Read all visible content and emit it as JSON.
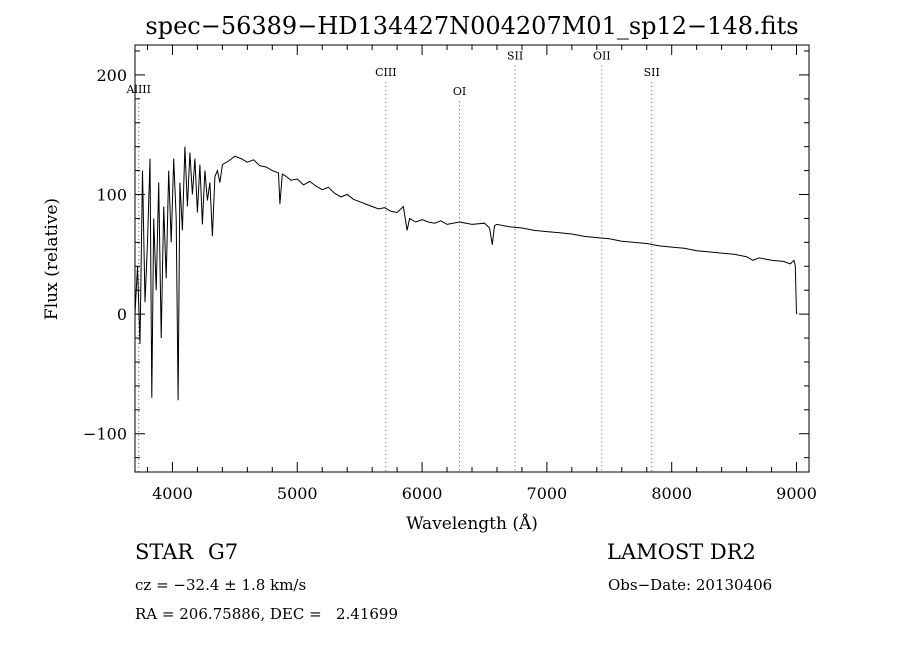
{
  "chart_data": {
    "type": "line",
    "title": "spec−56389−HD134427N004207M01_sp12−148.fits",
    "xlabel": "Wavelength (Å)",
    "ylabel": "Flux (relative)",
    "xlim": [
      3700,
      9100
    ],
    "ylim": [
      -132,
      225
    ],
    "xticks": [
      4000,
      5000,
      6000,
      7000,
      8000,
      9000
    ],
    "yticks": [
      -100,
      0,
      100,
      200
    ],
    "x_minor_step": 200,
    "y_minor_step": 20,
    "grid": false,
    "line_color": "#000000",
    "series": [
      {
        "x": [
          3700,
          3720,
          3740,
          3760,
          3780,
          3800,
          3820,
          3835,
          3850,
          3870,
          3890,
          3910,
          3930,
          3950,
          3970,
          3990,
          4010,
          4030,
          4045,
          4060,
          4080,
          4100,
          4120,
          4140,
          4160,
          4180,
          4200,
          4220,
          4240,
          4260,
          4280,
          4300,
          4320,
          4340,
          4360,
          4380,
          4400,
          4450,
          4500,
          4550,
          4600,
          4650,
          4700,
          4750,
          4800,
          4850,
          4861,
          4880,
          4900,
          4950,
          5000,
          5050,
          5100,
          5150,
          5200,
          5250,
          5300,
          5350,
          5400,
          5450,
          5500,
          5550,
          5600,
          5650,
          5700,
          5750,
          5800,
          5850,
          5880,
          5900,
          5950,
          6000,
          6050,
          6100,
          6150,
          6200,
          6300,
          6400,
          6500,
          6540,
          6563,
          6580,
          6600,
          6700,
          6800,
          6900,
          7000,
          7100,
          7200,
          7300,
          7400,
          7500,
          7600,
          7700,
          7800,
          7900,
          8000,
          8100,
          8200,
          8300,
          8400,
          8500,
          8600,
          8650,
          8700,
          8800,
          8900,
          8950,
          8980,
          8990,
          9000
        ],
        "y": [
          0,
          40,
          -25,
          120,
          10,
          60,
          130,
          -70,
          80,
          20,
          110,
          -20,
          90,
          30,
          120,
          60,
          130,
          80,
          -72,
          110,
          70,
          140,
          90,
          135,
          100,
          130,
          85,
          125,
          75,
          120,
          95,
          110,
          65,
          115,
          120,
          110,
          125,
          128,
          132,
          130,
          127,
          129,
          124,
          123,
          120,
          118,
          92,
          117,
          116,
          112,
          113,
          108,
          111,
          107,
          104,
          106,
          101,
          98,
          100,
          96,
          94,
          92,
          90,
          88,
          89,
          86,
          85,
          90,
          70,
          80,
          77,
          79,
          77,
          76,
          78,
          75,
          77,
          75,
          76,
          72,
          58,
          74,
          75,
          73,
          72,
          70,
          69,
          68,
          67,
          65,
          64,
          63,
          61,
          60,
          59,
          57,
          56,
          55,
          53,
          52,
          51,
          50,
          48,
          45,
          47,
          45,
          44,
          42,
          45,
          40,
          0
        ]
      }
    ],
    "lines": [
      {
        "label": "AlIII",
        "x": 3730,
        "label_y": 185
      },
      {
        "label": "CIII",
        "x": 5710,
        "label_y": 199
      },
      {
        "label": "OI",
        "x": 6300,
        "label_y": 183
      },
      {
        "label": "SII",
        "x": 6745,
        "label_y": 213
      },
      {
        "label": "OII",
        "x": 7440,
        "label_y": 213
      },
      {
        "label": "SII",
        "x": 7840,
        "label_y": 199
      }
    ]
  },
  "info": {
    "object_class": "STAR",
    "subclass": "G7",
    "survey": "LAMOST DR2",
    "cz": "cz = −32.4 ± 1.8 km/s",
    "obs_date": "Obs−Date: 20130406",
    "coords": "RA = 206.75886, DEC =   2.41699"
  }
}
